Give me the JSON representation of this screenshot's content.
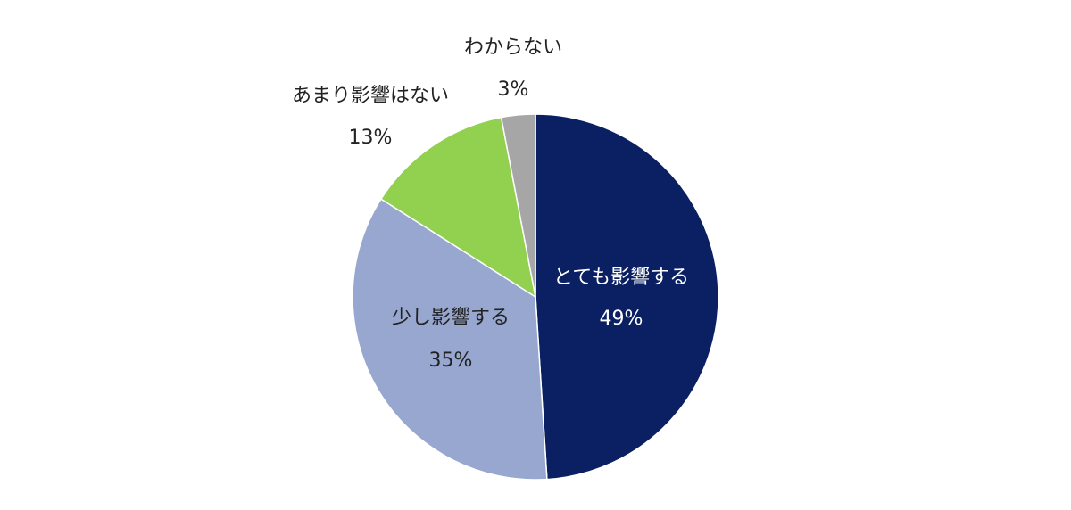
{
  "chart_data": {
    "type": "pie",
    "title": "",
    "start": "12 o'clock",
    "direction": "clockwise",
    "slices": [
      {
        "label": "とても影響する",
        "value": 49,
        "value_label": "49%",
        "color": "#0a2062",
        "text_color": "#ffffff"
      },
      {
        "label": "少し影響する",
        "value": 35,
        "value_label": "35%",
        "color": "#97a7cf",
        "text_color": "#222222"
      },
      {
        "label": "あまり影響はない",
        "value": 13,
        "value_label": "13%",
        "color": "#92d050",
        "text_color": "#222222"
      },
      {
        "label": "わからない",
        "value": 3,
        "value_label": "3%",
        "color": "#a6a6a6",
        "text_color": "#222222"
      }
    ],
    "legend": "none",
    "data_labels": "category name and percentage"
  }
}
